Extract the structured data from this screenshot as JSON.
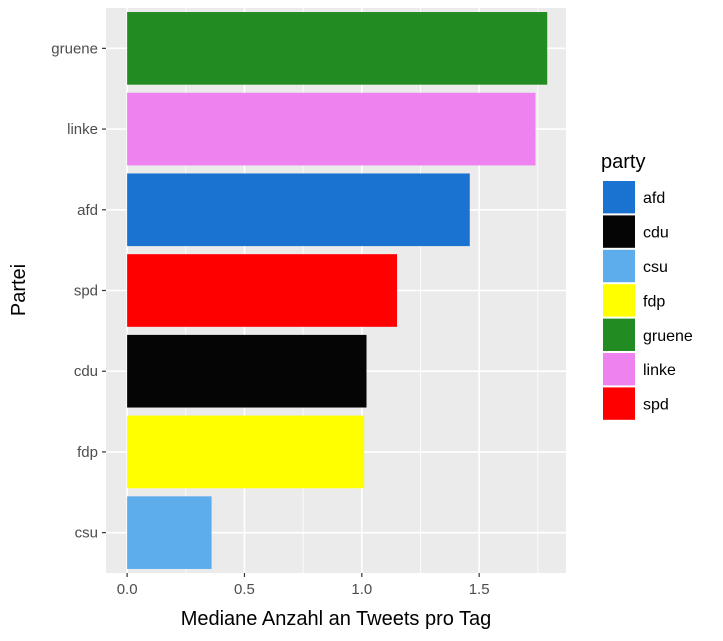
{
  "chart_data": {
    "type": "bar",
    "orientation": "horizontal",
    "xlabel": "Mediane Anzahl an Tweets pro Tag",
    "ylabel": "Partei",
    "xlim": [
      -0.09,
      1.87
    ],
    "xticks": [
      0.0,
      0.5,
      1.0,
      1.5
    ],
    "xtick_labels": [
      "0.0",
      "0.5",
      "1.0",
      "1.5"
    ],
    "grid": true,
    "categories": [
      "csu",
      "fdp",
      "cdu",
      "spd",
      "afd",
      "linke",
      "gruene"
    ],
    "values": [
      0.36,
      1.01,
      1.02,
      1.15,
      1.46,
      1.74,
      1.79
    ],
    "colors": [
      "#5dadec",
      "#ffff00",
      "#050505",
      "#ff0000",
      "#1b73d1",
      "#ee82ee",
      "#228b22"
    ],
    "legend": {
      "title": "party",
      "position": "right",
      "entries": [
        {
          "label": "afd",
          "color": "#1b73d1"
        },
        {
          "label": "cdu",
          "color": "#050505"
        },
        {
          "label": "csu",
          "color": "#5dadec"
        },
        {
          "label": "fdp",
          "color": "#ffff00"
        },
        {
          "label": "gruene",
          "color": "#228b22"
        },
        {
          "label": "linke",
          "color": "#ee82ee"
        },
        {
          "label": "spd",
          "color": "#ff0000"
        }
      ]
    }
  }
}
